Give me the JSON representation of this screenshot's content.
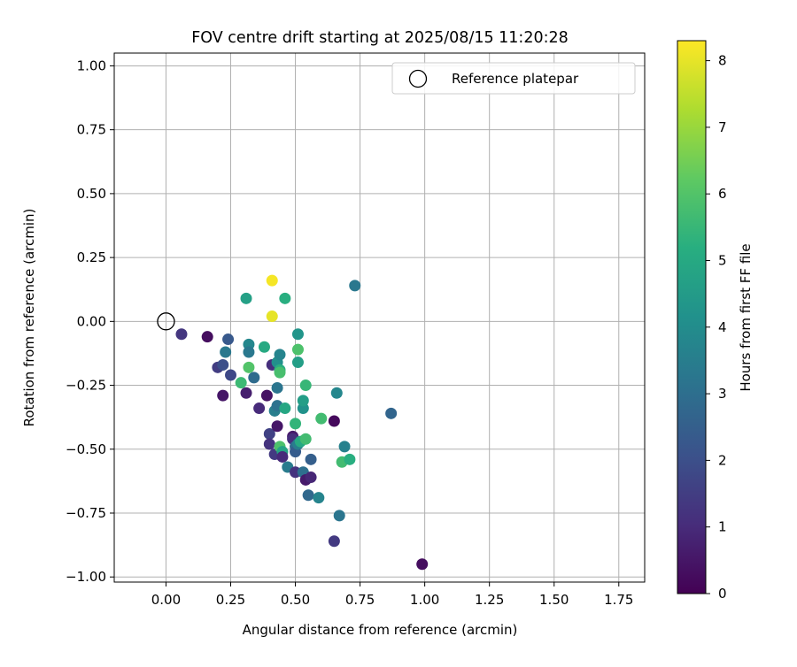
{
  "chart_data": {
    "type": "scatter",
    "title": "FOV centre drift starting at 2025/08/15 11:20:28",
    "xlabel": "Angular distance from reference (arcmin)",
    "ylabel": "Rotation from reference (arcmin)",
    "xlim": [
      -0.2,
      1.85
    ],
    "ylim": [
      -1.02,
      1.05
    ],
    "xticks": [
      "0.00",
      "0.25",
      "0.50",
      "0.75",
      "1.00",
      "1.25",
      "1.50",
      "1.75"
    ],
    "yticks": [
      "1.00",
      "0.75",
      "0.50",
      "0.25",
      "0.00",
      "−0.25",
      "−0.50",
      "−0.75",
      "−1.00"
    ],
    "grid": true,
    "legend": {
      "position": "top-right",
      "entries": [
        "Reference platepar"
      ]
    },
    "reference_point": {
      "x": 0.0,
      "y": 0.0
    },
    "colorbar": {
      "label": "Hours from first FF file",
      "colormap": "viridis",
      "range": [
        0,
        8.3
      ],
      "ticks": [
        "0",
        "1",
        "2",
        "3",
        "4",
        "5",
        "6",
        "7",
        "8"
      ]
    },
    "points": [
      {
        "x": 0.06,
        "y": -0.05,
        "hours": 1.3
      },
      {
        "x": 0.16,
        "y": -0.06,
        "hours": 0.3
      },
      {
        "x": 0.2,
        "y": -0.18,
        "hours": 1.5
      },
      {
        "x": 0.22,
        "y": -0.17,
        "hours": 2.0
      },
      {
        "x": 0.22,
        "y": -0.29,
        "hours": 0.5
      },
      {
        "x": 0.23,
        "y": -0.12,
        "hours": 3.3
      },
      {
        "x": 0.24,
        "y": -0.07,
        "hours": 2.3
      },
      {
        "x": 0.25,
        "y": -0.21,
        "hours": 1.8
      },
      {
        "x": 0.29,
        "y": -0.24,
        "hours": 5.6
      },
      {
        "x": 0.31,
        "y": 0.09,
        "hours": 4.7
      },
      {
        "x": 0.31,
        "y": -0.28,
        "hours": 0.7
      },
      {
        "x": 0.32,
        "y": -0.09,
        "hours": 3.8
      },
      {
        "x": 0.32,
        "y": -0.12,
        "hours": 3.3
      },
      {
        "x": 0.32,
        "y": -0.18,
        "hours": 6.0
      },
      {
        "x": 0.34,
        "y": -0.22,
        "hours": 2.9
      },
      {
        "x": 0.36,
        "y": -0.34,
        "hours": 1.0
      },
      {
        "x": 0.38,
        "y": -0.1,
        "hours": 5.0
      },
      {
        "x": 0.39,
        "y": -0.29,
        "hours": 0.4
      },
      {
        "x": 0.4,
        "y": -0.44,
        "hours": 1.6
      },
      {
        "x": 0.4,
        "y": -0.48,
        "hours": 1.2
      },
      {
        "x": 0.41,
        "y": 0.16,
        "hours": 8.2
      },
      {
        "x": 0.41,
        "y": 0.02,
        "hours": 8.0
      },
      {
        "x": 0.41,
        "y": -0.17,
        "hours": 1.1
      },
      {
        "x": 0.42,
        "y": -0.35,
        "hours": 3.5
      },
      {
        "x": 0.42,
        "y": -0.52,
        "hours": 1.4
      },
      {
        "x": 0.43,
        "y": -0.33,
        "hours": 3.1
      },
      {
        "x": 0.43,
        "y": -0.41,
        "hours": 0.5
      },
      {
        "x": 0.43,
        "y": -0.26,
        "hours": 3.2
      },
      {
        "x": 0.43,
        "y": -0.16,
        "hours": 4.1
      },
      {
        "x": 0.44,
        "y": -0.19,
        "hours": 5.2
      },
      {
        "x": 0.44,
        "y": -0.2,
        "hours": 5.8
      },
      {
        "x": 0.44,
        "y": -0.13,
        "hours": 3.7
      },
      {
        "x": 0.44,
        "y": -0.49,
        "hours": 5.9
      },
      {
        "x": 0.45,
        "y": -0.51,
        "hours": 4.8
      },
      {
        "x": 0.45,
        "y": -0.53,
        "hours": 1.0
      },
      {
        "x": 0.46,
        "y": 0.09,
        "hours": 5.2
      },
      {
        "x": 0.46,
        "y": -0.34,
        "hours": 4.9
      },
      {
        "x": 0.47,
        "y": -0.57,
        "hours": 3.4
      },
      {
        "x": 0.49,
        "y": -0.45,
        "hours": 0.6
      },
      {
        "x": 0.49,
        "y": -0.46,
        "hours": 1.1
      },
      {
        "x": 0.5,
        "y": -0.4,
        "hours": 5.4
      },
      {
        "x": 0.5,
        "y": -0.59,
        "hours": 1.2
      },
      {
        "x": 0.5,
        "y": -0.49,
        "hours": 2.9
      },
      {
        "x": 0.5,
        "y": -0.51,
        "hours": 2.4
      },
      {
        "x": 0.51,
        "y": -0.05,
        "hours": 4.3
      },
      {
        "x": 0.51,
        "y": -0.11,
        "hours": 5.9
      },
      {
        "x": 0.51,
        "y": -0.16,
        "hours": 4.6
      },
      {
        "x": 0.51,
        "y": -0.48,
        "hours": 3.5
      },
      {
        "x": 0.52,
        "y": -0.47,
        "hours": 5.0
      },
      {
        "x": 0.53,
        "y": -0.34,
        "hours": 4.2
      },
      {
        "x": 0.53,
        "y": -0.31,
        "hours": 4.6
      },
      {
        "x": 0.53,
        "y": -0.59,
        "hours": 3.0
      },
      {
        "x": 0.54,
        "y": -0.25,
        "hours": 5.5
      },
      {
        "x": 0.54,
        "y": -0.46,
        "hours": 5.7
      },
      {
        "x": 0.54,
        "y": -0.62,
        "hours": 0.6
      },
      {
        "x": 0.55,
        "y": -0.68,
        "hours": 2.8
      },
      {
        "x": 0.56,
        "y": -0.61,
        "hours": 0.9
      },
      {
        "x": 0.56,
        "y": -0.54,
        "hours": 2.5
      },
      {
        "x": 0.59,
        "y": -0.69,
        "hours": 3.7
      },
      {
        "x": 0.6,
        "y": -0.38,
        "hours": 5.7
      },
      {
        "x": 0.65,
        "y": -0.86,
        "hours": 1.4
      },
      {
        "x": 0.65,
        "y": -0.39,
        "hours": 0.2
      },
      {
        "x": 0.66,
        "y": -0.28,
        "hours": 3.8
      },
      {
        "x": 0.67,
        "y": -0.76,
        "hours": 3.2
      },
      {
        "x": 0.68,
        "y": -0.55,
        "hours": 5.7
      },
      {
        "x": 0.69,
        "y": -0.49,
        "hours": 3.6
      },
      {
        "x": 0.71,
        "y": -0.54,
        "hours": 5.2
      },
      {
        "x": 0.73,
        "y": 0.14,
        "hours": 3.3
      },
      {
        "x": 0.87,
        "y": -0.36,
        "hours": 2.7
      },
      {
        "x": 0.99,
        "y": -0.95,
        "hours": 0.3
      }
    ]
  }
}
